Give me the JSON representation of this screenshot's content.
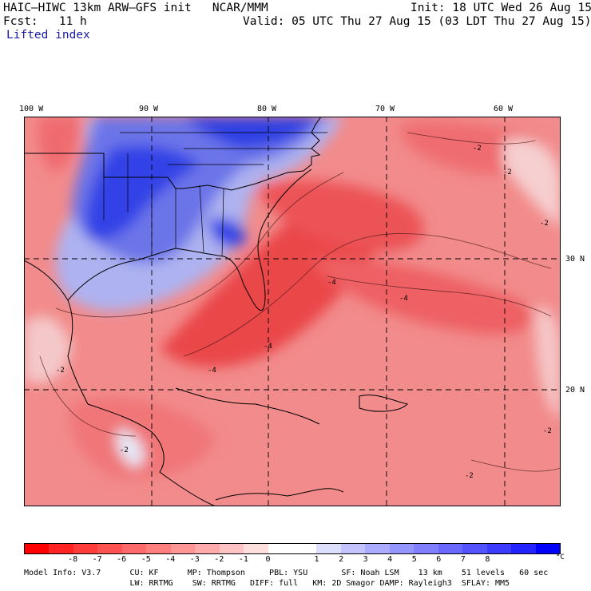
{
  "header": {
    "model_line": "HAIC–HIWC 13km ARW–GFS init   NCAR/MMM",
    "init_line": "Init: 18 UTC Wed 26 Aug 15",
    "fcst_line": "Fcst:   11 h",
    "valid_line": "Valid: 05 UTC Thu 27 Aug 15 (03 LDT Thu 27 Aug 15)",
    "field_name": "Lifted index"
  },
  "map": {
    "longitude_labels": [
      "100 W",
      "90 W",
      "80 W",
      "70 W",
      "60 W"
    ],
    "latitude_labels": [
      "30 N",
      "20 N"
    ],
    "contour_labels": [
      "-2",
      "-2",
      "-2",
      "-2",
      "-2",
      "-4",
      "-4",
      "-4",
      "-4",
      "-2",
      "-2"
    ],
    "colors": {
      "strong_positive": "#1f2fe6",
      "positive": "#8a90ee",
      "neutral": "#f2f2f8",
      "negative": "#f28a8a",
      "strong_negative": "#e8393c"
    }
  },
  "colorbar": {
    "labels": [
      "-8",
      "-7",
      "-6",
      "-5",
      "-4",
      "-3",
      "-2",
      "-1",
      "0",
      "1",
      "2",
      "3",
      "4",
      "5",
      "6",
      "7",
      "8"
    ],
    "unit": "°C",
    "swatches": [
      "#ff0000",
      "#ff2323",
      "#ff3c3c",
      "#ff5353",
      "#ff6969",
      "#ff7f7f",
      "#ff9595",
      "#ffabab",
      "#ffc3c3",
      "#ffdede",
      "#ffffff",
      "#ffffff",
      "#dedeff",
      "#c3c3ff",
      "#ababff",
      "#9595ff",
      "#7f7fff",
      "#6969ff",
      "#5353ff",
      "#3c3cff",
      "#2323ff",
      "#0000ff"
    ]
  },
  "footer": {
    "line1": "Model Info: V3.7      CU: KF      MP: Thompson     PBL: YSU       SF: Noah LSM    13 km    51 levels   60 sec",
    "line2": "                      LW: RRTMG    SW: RRTMG   DIFF: full   KM: 2D Smagor DAMP: Rayleigh3  SFLAY: MM5"
  }
}
